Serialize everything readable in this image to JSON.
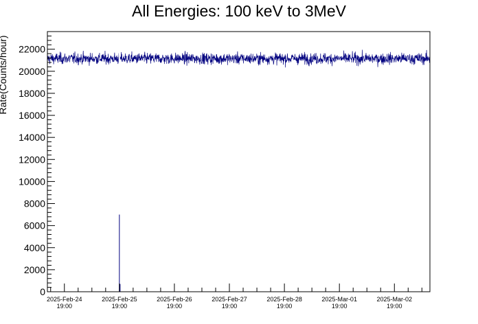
{
  "chart_data": {
    "type": "line",
    "title": "All Energies:  100 keV to 3MeV",
    "xlabel": "",
    "ylabel": "Rate(Counts/hour)",
    "ylim": [
      0,
      23600
    ],
    "y_ticks": [
      0,
      2000,
      4000,
      6000,
      8000,
      10000,
      12000,
      14000,
      16000,
      18000,
      20000,
      22000
    ],
    "x_axis": {
      "type": "time",
      "range": [
        "2025-Feb-24 11:35",
        "2025-Mar-03 10:30"
      ],
      "tick_labels": [
        {
          "date": "2025-Feb-24",
          "time": "19:00"
        },
        {
          "date": "2025-Feb-25",
          "time": "19:00"
        },
        {
          "date": "2025-Feb-26",
          "time": "19:00"
        },
        {
          "date": "2025-Feb-27",
          "time": "19:00"
        },
        {
          "date": "2025-Feb-28",
          "time": "19:00"
        },
        {
          "date": "2025-Mar-01",
          "time": "19:00"
        },
        {
          "date": "2025-Mar-02",
          "time": "19:00"
        }
      ]
    },
    "series": [
      {
        "color": "#00007f",
        "baseline_rate": 21150,
        "fluctuation_range": [
          19800,
          22400
        ],
        "anomaly": {
          "time": "2025-Feb-25 19:00",
          "values": [
            7000,
            700
          ]
        }
      }
    ],
    "grid": false,
    "legend": "none"
  }
}
